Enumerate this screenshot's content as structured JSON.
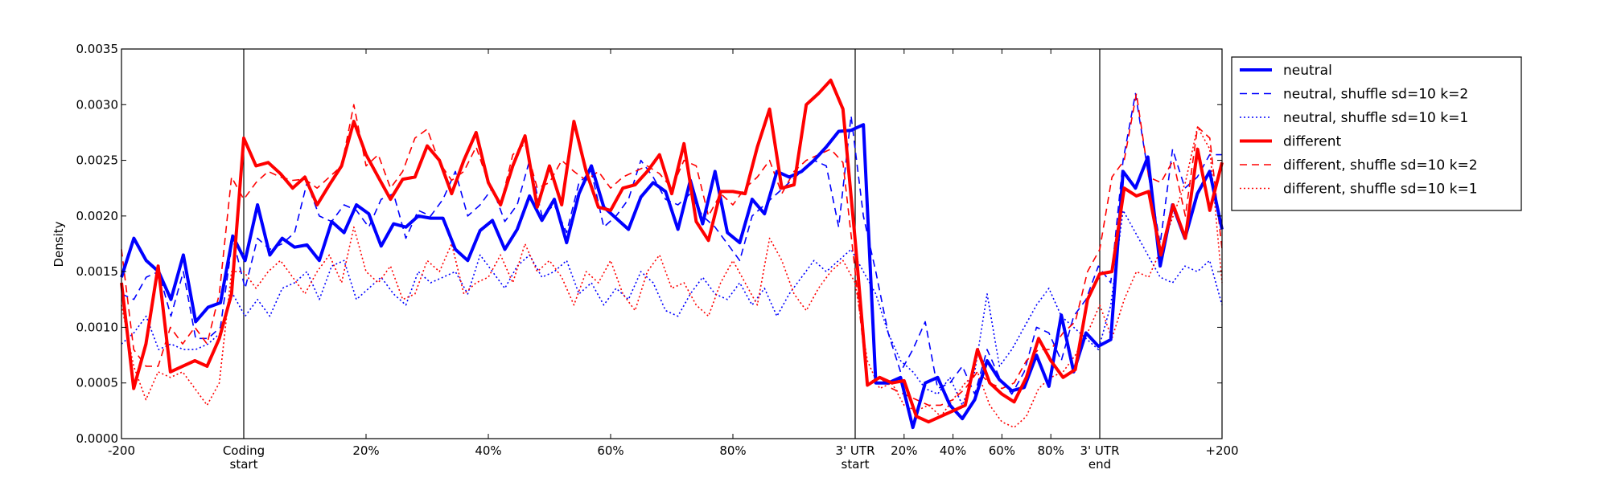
{
  "chart_data": {
    "type": "line",
    "ylabel": "Density",
    "ylim": [
      0,
      0.0035
    ],
    "yticks": [
      "0.0000",
      "0.0005",
      "0.0010",
      "0.0015",
      "0.0020",
      "0.0025",
      "0.0030",
      "0.0035"
    ],
    "xticks": [
      {
        "x": 0,
        "lines": [
          "-200"
        ]
      },
      {
        "x": 20,
        "lines": [
          "Coding",
          "start"
        ]
      },
      {
        "x": 40,
        "lines": [
          "20%"
        ]
      },
      {
        "x": 60,
        "lines": [
          "40%"
        ]
      },
      {
        "x": 80,
        "lines": [
          "60%"
        ]
      },
      {
        "x": 100,
        "lines": [
          "80%"
        ]
      },
      {
        "x": 120,
        "lines": [
          "3' UTR",
          "start"
        ]
      },
      {
        "x": 128,
        "lines": [
          "20%"
        ]
      },
      {
        "x": 136,
        "lines": [
          "40%"
        ]
      },
      {
        "x": 144,
        "lines": [
          "60%"
        ]
      },
      {
        "x": 152,
        "lines": [
          "80%"
        ]
      },
      {
        "x": 160,
        "lines": [
          "3' UTR",
          "end"
        ]
      },
      {
        "x": 180,
        "lines": [
          "+200"
        ]
      }
    ],
    "xlim": [
      0,
      180
    ],
    "vlines": [
      20,
      120,
      160
    ],
    "legend": {
      "position": "outside-right"
    },
    "colors": {
      "neutral": "#0000ff",
      "different": "#ff0000"
    },
    "series": [
      {
        "name": "neutral",
        "style": "solid",
        "color": "#0000ff",
        "values": [
          0.00145,
          0.0018,
          0.0016,
          0.0015,
          0.00125,
          0.00165,
          0.00105,
          0.00118,
          0.00122,
          0.00182,
          0.0016,
          0.0021,
          0.00165,
          0.0018,
          0.00172,
          0.00174,
          0.0016,
          0.00195,
          0.00185,
          0.0021,
          0.00202,
          0.00173,
          0.00193,
          0.0019,
          0.002,
          0.00198,
          0.00198,
          0.0017,
          0.0016,
          0.00187,
          0.00196,
          0.0017,
          0.00188,
          0.00218,
          0.00196,
          0.00215,
          0.00176,
          0.0022,
          0.00245,
          0.00208,
          0.00198,
          0.00188,
          0.00217,
          0.0023,
          0.00222,
          0.00188,
          0.00232,
          0.00193,
          0.0024,
          0.00185,
          0.00176,
          0.00215,
          0.00202,
          0.0024,
          0.00235,
          0.0024,
          0.0025,
          0.00262,
          0.00276,
          0.00277,
          0.00282,
          0.0005,
          0.0005,
          0.00055,
          0.0001,
          0.0005,
          0.00055,
          0.0003,
          0.00018,
          0.00035,
          0.0007,
          0.00053,
          0.00043,
          0.00046,
          0.00075,
          0.00047,
          0.00111,
          0.0006,
          0.00095,
          0.00083,
          0.00089,
          0.0024,
          0.00225,
          0.00253,
          0.00155,
          0.0021,
          0.0018,
          0.0022,
          0.0024,
          0.00188
        ]
      },
      {
        "name": "neutral, shuffle sd=10 k=2",
        "style": "dashed",
        "color": "#0000ff",
        "values": [
          0.0013,
          0.00125,
          0.00145,
          0.0015,
          0.0011,
          0.0015,
          0.0009,
          0.0009,
          0.001,
          0.0018,
          0.00135,
          0.0018,
          0.0017,
          0.00175,
          0.00185,
          0.0023,
          0.002,
          0.00195,
          0.0021,
          0.00205,
          0.0019,
          0.00215,
          0.0022,
          0.0018,
          0.00205,
          0.002,
          0.00215,
          0.0024,
          0.002,
          0.0021,
          0.00225,
          0.00195,
          0.0021,
          0.0025,
          0.002,
          0.0021,
          0.00185,
          0.0023,
          0.0024,
          0.0019,
          0.002,
          0.00215,
          0.0025,
          0.00235,
          0.00215,
          0.0021,
          0.0022,
          0.002,
          0.0019,
          0.00175,
          0.0016,
          0.002,
          0.0021,
          0.0022,
          0.0023,
          0.0024,
          0.0025,
          0.00245,
          0.0019,
          0.0029,
          0.002,
          0.0015,
          0.00095,
          0.0006,
          0.0008,
          0.00105,
          0.00045,
          0.0005,
          0.00065,
          0.0004,
          0.0008,
          0.00055,
          0.0004,
          0.0006,
          0.001,
          0.00095,
          0.0007,
          0.0011,
          0.00125,
          0.00155,
          0.0014,
          0.0025,
          0.0031,
          0.0024,
          0.00175,
          0.0026,
          0.00225,
          0.00235,
          0.00255,
          0.00255
        ]
      },
      {
        "name": "neutral, shuffle sd=10 k=1",
        "style": "dotted",
        "color": "#0000ff",
        "values": [
          0.00085,
          0.00095,
          0.0011,
          0.0008,
          0.00085,
          0.0008,
          0.0008,
          0.00085,
          0.00095,
          0.0013,
          0.0011,
          0.00125,
          0.0011,
          0.00135,
          0.0014,
          0.0015,
          0.00125,
          0.00155,
          0.0016,
          0.00125,
          0.00135,
          0.00145,
          0.0013,
          0.0012,
          0.0015,
          0.0014,
          0.00145,
          0.0015,
          0.0013,
          0.00165,
          0.0015,
          0.00135,
          0.00155,
          0.00165,
          0.00145,
          0.0015,
          0.0016,
          0.0013,
          0.0014,
          0.0012,
          0.00135,
          0.00125,
          0.0015,
          0.0014,
          0.00115,
          0.0011,
          0.0013,
          0.00145,
          0.0013,
          0.00125,
          0.0014,
          0.0012,
          0.00135,
          0.0011,
          0.0013,
          0.00145,
          0.0016,
          0.0015,
          0.0016,
          0.0017,
          0.0015,
          0.0013,
          0.00095,
          0.0007,
          0.0006,
          0.00045,
          0.0004,
          0.00055,
          0.0003,
          0.0006,
          0.0013,
          0.00065,
          0.0008,
          0.001,
          0.0012,
          0.00135,
          0.0011,
          0.001,
          0.0009,
          0.0008,
          0.0012,
          0.00205,
          0.00185,
          0.00165,
          0.00145,
          0.0014,
          0.00155,
          0.0015,
          0.0016,
          0.0012
        ]
      },
      {
        "name": "different",
        "style": "solid",
        "color": "#ff0000",
        "values": [
          0.0014,
          0.00045,
          0.00085,
          0.00155,
          0.0006,
          0.00065,
          0.0007,
          0.00065,
          0.0009,
          0.0013,
          0.0027,
          0.00245,
          0.00248,
          0.00238,
          0.00225,
          0.00235,
          0.0021,
          0.00228,
          0.00245,
          0.00285,
          0.00255,
          0.00235,
          0.00215,
          0.00233,
          0.00235,
          0.00263,
          0.0025,
          0.0022,
          0.0025,
          0.00275,
          0.0023,
          0.0021,
          0.00245,
          0.00272,
          0.00208,
          0.00245,
          0.0021,
          0.00285,
          0.0024,
          0.00208,
          0.00205,
          0.00225,
          0.00228,
          0.0024,
          0.00255,
          0.0022,
          0.00265,
          0.00195,
          0.00178,
          0.00222,
          0.00222,
          0.0022,
          0.00262,
          0.00296,
          0.00225,
          0.00228,
          0.003,
          0.0031,
          0.00322,
          0.00296,
          0.00178,
          0.00048,
          0.00055,
          0.0005,
          0.00052,
          0.0002,
          0.00015,
          0.0002,
          0.00025,
          0.0003,
          0.0008,
          0.0005,
          0.0004,
          0.00033,
          0.00055,
          0.0009,
          0.0007,
          0.00055,
          0.00062,
          0.00125,
          0.00148,
          0.0015,
          0.00225,
          0.00218,
          0.00222,
          0.00165,
          0.0021,
          0.0018,
          0.0026,
          0.00205,
          0.00248
        ]
      },
      {
        "name": "different, shuffle sd=10 k=2",
        "style": "dashed",
        "color": "#ff0000",
        "values": [
          0.0017,
          0.0008,
          0.00065,
          0.00065,
          0.001,
          0.00085,
          0.001,
          0.00085,
          0.0013,
          0.00235,
          0.00215,
          0.0023,
          0.0024,
          0.00235,
          0.00232,
          0.00233,
          0.00225,
          0.00235,
          0.00245,
          0.003,
          0.00245,
          0.00255,
          0.00225,
          0.0024,
          0.0027,
          0.00278,
          0.00248,
          0.00232,
          0.0024,
          0.00262,
          0.0023,
          0.0021,
          0.00255,
          0.00265,
          0.00225,
          0.0023,
          0.0025,
          0.0024,
          0.00232,
          0.0024,
          0.00225,
          0.00235,
          0.0024,
          0.00245,
          0.00238,
          0.00225,
          0.0025,
          0.00245,
          0.002,
          0.0022,
          0.0021,
          0.00225,
          0.00235,
          0.0025,
          0.0022,
          0.0024,
          0.0025,
          0.00255,
          0.0026,
          0.00248,
          0.0015,
          0.0005,
          0.00055,
          0.00045,
          0.0004,
          0.00035,
          0.0003,
          0.0003,
          0.00035,
          0.00045,
          0.0006,
          0.0005,
          0.00045,
          0.0005,
          0.0007,
          0.0008,
          0.0008,
          0.00095,
          0.00105,
          0.0015,
          0.0017,
          0.00235,
          0.0025,
          0.0031,
          0.00235,
          0.0023,
          0.0025,
          0.002,
          0.0028,
          0.0027,
          0.0017
        ]
      },
      {
        "name": "different, shuffle sd=10 k=1",
        "style": "dotted",
        "color": "#ff0000",
        "values": [
          0.0012,
          0.00065,
          0.00035,
          0.0006,
          0.00055,
          0.0006,
          0.00045,
          0.0003,
          0.0005,
          0.0015,
          0.0015,
          0.00135,
          0.0015,
          0.0016,
          0.00145,
          0.0013,
          0.0015,
          0.00165,
          0.0014,
          0.0019,
          0.0015,
          0.0014,
          0.00155,
          0.00125,
          0.0013,
          0.0016,
          0.0015,
          0.00175,
          0.0013,
          0.0014,
          0.00145,
          0.00165,
          0.0014,
          0.00175,
          0.0015,
          0.0016,
          0.00145,
          0.0012,
          0.0015,
          0.0014,
          0.0016,
          0.0013,
          0.00115,
          0.0015,
          0.00165,
          0.00135,
          0.0014,
          0.0012,
          0.0011,
          0.0014,
          0.0016,
          0.0014,
          0.0012,
          0.0018,
          0.0016,
          0.0013,
          0.00115,
          0.00135,
          0.0015,
          0.0016,
          0.0014,
          0.0007,
          0.00045,
          0.0005,
          0.0003,
          0.00025,
          0.0003,
          0.0002,
          0.00035,
          0.0005,
          0.0006,
          0.0003,
          0.00015,
          0.0001,
          0.0002,
          0.00045,
          0.00055,
          0.0006,
          0.00075,
          0.00095,
          0.0012,
          0.0009,
          0.00125,
          0.0015,
          0.00145,
          0.0017,
          0.002,
          0.0023,
          0.0028,
          0.0026,
          0.0014
        ]
      }
    ]
  }
}
